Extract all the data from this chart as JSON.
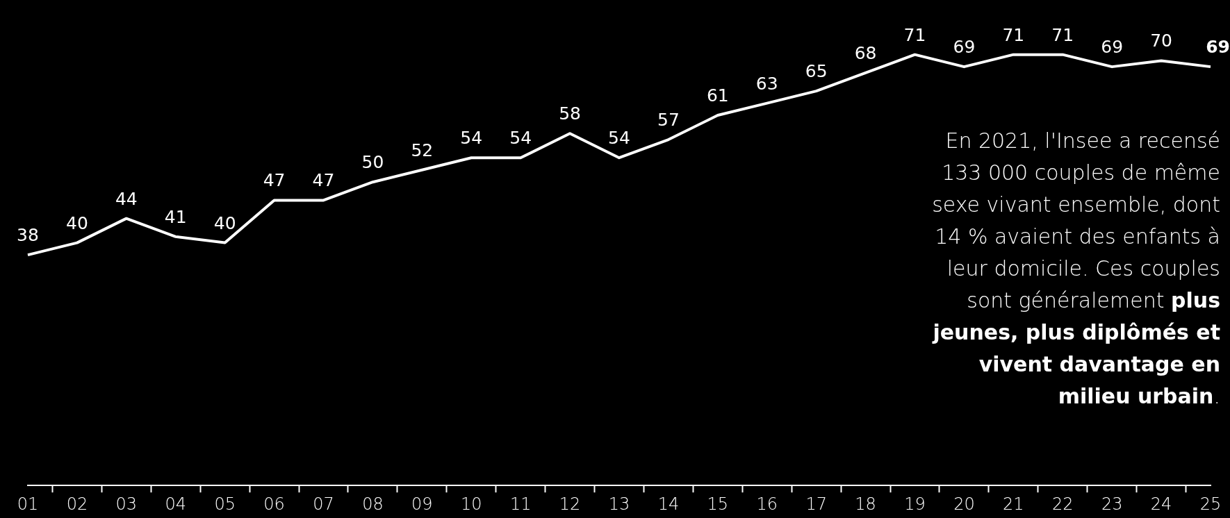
{
  "chart_data": {
    "type": "line",
    "categories": [
      "01",
      "02",
      "03",
      "04",
      "05",
      "06",
      "07",
      "08",
      "09",
      "10",
      "11",
      "12",
      "13",
      "14",
      "15",
      "16",
      "17",
      "18",
      "19",
      "20",
      "21",
      "22",
      "23",
      "24",
      "25"
    ],
    "series": [
      {
        "color": "#ffffff",
        "values": [
          38,
          40,
          44,
          41,
          40,
          47,
          47,
          50,
          52,
          54,
          54,
          58,
          54,
          57,
          61,
          63,
          65,
          68,
          71,
          69,
          71,
          71,
          69,
          70,
          69
        ]
      }
    ],
    "tick_labels": "x",
    "data_labels": true,
    "grid": false,
    "legend": false,
    "marker": "none",
    "line_style": "solid",
    "annotations": [
      "En 2021, l'Insee a recensé 133 000 couples de même sexe vivant ensemble, dont 14 % avaient des enfants à leur domicile. Ces couples sont généralement ",
      "plus jeunes, plus diplômés et vivent davantage en milieu urbain",
      ". "
    ]
  }
}
